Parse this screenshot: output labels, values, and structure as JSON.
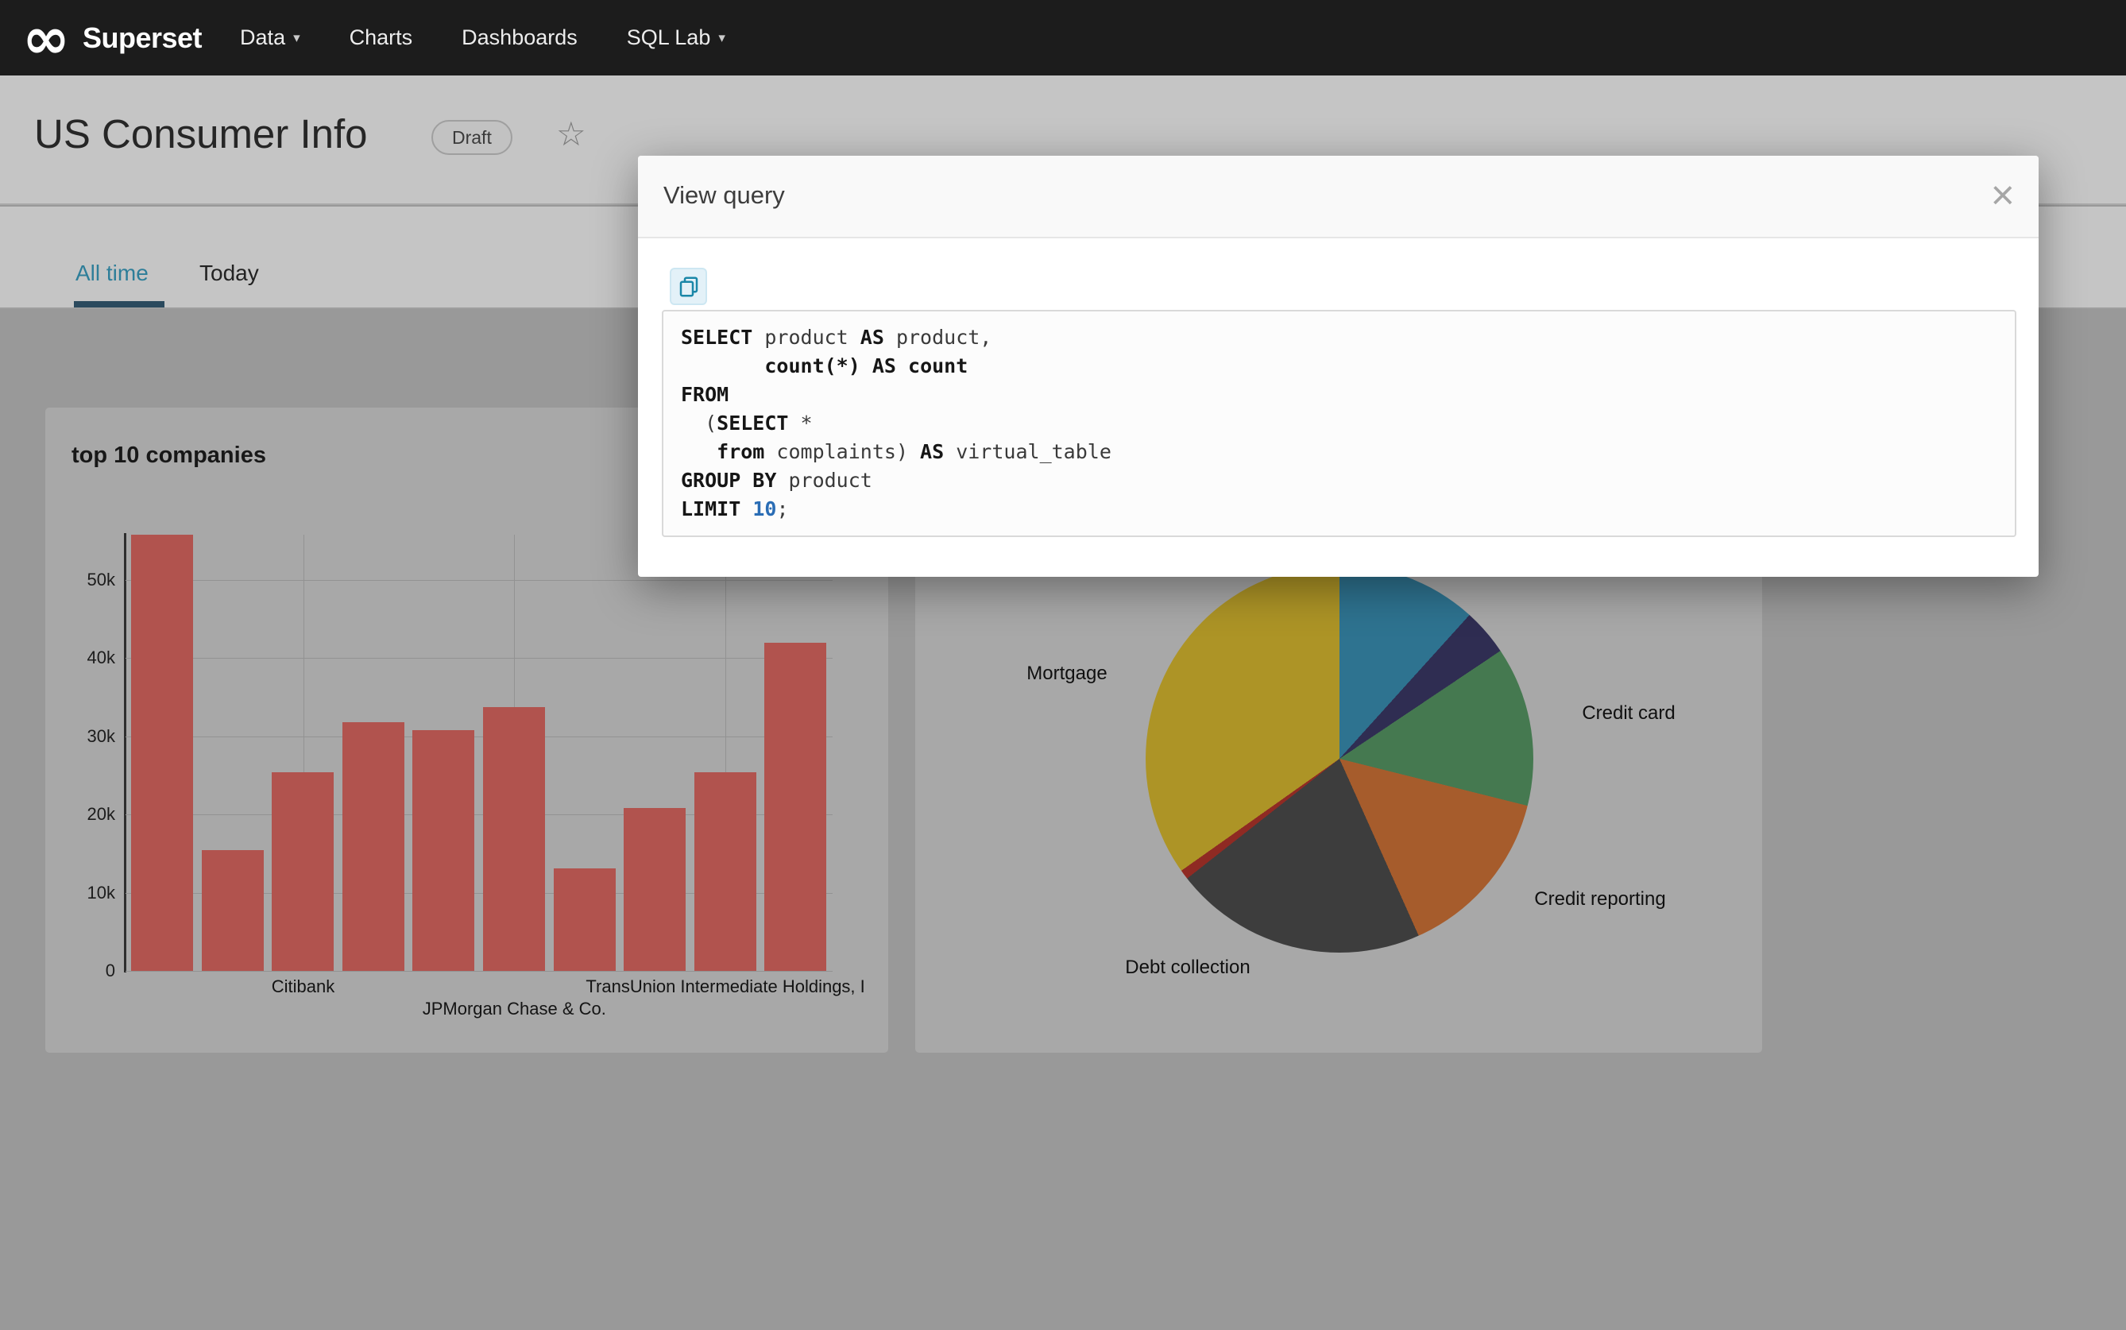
{
  "icons": {
    "logo_infinity": "∞",
    "caret_down": "▾",
    "star_outline": "☆",
    "close_x": "×",
    "copy_clipboard": "copy-to-clipboard"
  },
  "colors": {
    "navbar_bg": "#1c1c1c",
    "active_tab_text": "#2e7e99",
    "tab_underline": "#2b4a5e",
    "bar_fill": "#b1534e",
    "sql_number": "#2a6db5"
  },
  "navbar": {
    "brand": "Superset",
    "items": [
      {
        "label": "Data",
        "has_dropdown": true
      },
      {
        "label": "Charts",
        "has_dropdown": false
      },
      {
        "label": "Dashboards",
        "has_dropdown": false
      },
      {
        "label": "SQL Lab",
        "has_dropdown": true
      }
    ]
  },
  "header": {
    "title": "US Consumer Info",
    "badge": "Draft"
  },
  "tabs": [
    {
      "label": "All time",
      "active": true
    },
    {
      "label": "Today",
      "active": false
    }
  ],
  "modal": {
    "title": "View query",
    "sql_lines": [
      [
        [
          "k",
          "SELECT"
        ],
        [
          "p",
          " product "
        ],
        [
          "k",
          "AS"
        ],
        [
          "p",
          " product,"
        ]
      ],
      [
        [
          "p",
          "       "
        ],
        [
          "k",
          "count(*)"
        ],
        [
          "p",
          " "
        ],
        [
          "k",
          "AS"
        ],
        [
          "p",
          " "
        ],
        [
          "k",
          "count"
        ]
      ],
      [
        [
          "k",
          "FROM"
        ]
      ],
      [
        [
          "p",
          "  ("
        ],
        [
          "k",
          "SELECT"
        ],
        [
          "p",
          " *"
        ]
      ],
      [
        [
          "p",
          "   "
        ],
        [
          "k",
          "from"
        ],
        [
          "p",
          " complaints) "
        ],
        [
          "k",
          "AS"
        ],
        [
          "p",
          " virtual_table"
        ]
      ],
      [
        [
          "k",
          "GROUP BY"
        ],
        [
          "p",
          " product"
        ]
      ],
      [
        [
          "k",
          "LIMIT"
        ],
        [
          "p",
          " "
        ],
        [
          "n",
          "10"
        ],
        [
          "p",
          ";"
        ]
      ]
    ]
  },
  "chart_data": [
    {
      "type": "bar",
      "title": "top 10 companies",
      "xlabel": "",
      "ylabel": "",
      "ylim": [
        0,
        55800
      ],
      "grid": true,
      "bar_color": "#b1534e",
      "ytick_labels": [
        "0",
        "10k",
        "20k",
        "30k",
        "40k",
        "50k"
      ],
      "ytick_values": [
        0,
        10000,
        20000,
        30000,
        40000,
        50000
      ],
      "values": [
        55800,
        15500,
        25400,
        31800,
        30800,
        33700,
        13100,
        20800,
        25400,
        42000
      ],
      "xtick_labels": [
        {
          "index": 2,
          "label": "Citibank",
          "row": 1
        },
        {
          "index": 5,
          "label": "JPMorgan Chase & Co.",
          "row": 2
        },
        {
          "index": 8,
          "label": "TransUnion Intermediate Holdings, I",
          "row": 1
        }
      ]
    },
    {
      "type": "pie",
      "title": "",
      "legend": false,
      "start_angle_deg": 0,
      "slices": [
        {
          "label": "",
          "percent": 11.7,
          "color": "#2e7390"
        },
        {
          "label": "",
          "percent": 3.9,
          "color": "#2f2d52"
        },
        {
          "label": "Credit card",
          "percent": 13.3,
          "color": "#457950"
        },
        {
          "label": "Credit reporting",
          "percent": 14.4,
          "color": "#a65c2c"
        },
        {
          "label": "Debt collection",
          "percent": 21.1,
          "color": "#3d3d3d"
        },
        {
          "label": "",
          "percent": 0.8,
          "color": "#8f2a23"
        },
        {
          "label": "Mortgage",
          "percent": 34.8,
          "color": "#ad9426"
        }
      ]
    }
  ]
}
